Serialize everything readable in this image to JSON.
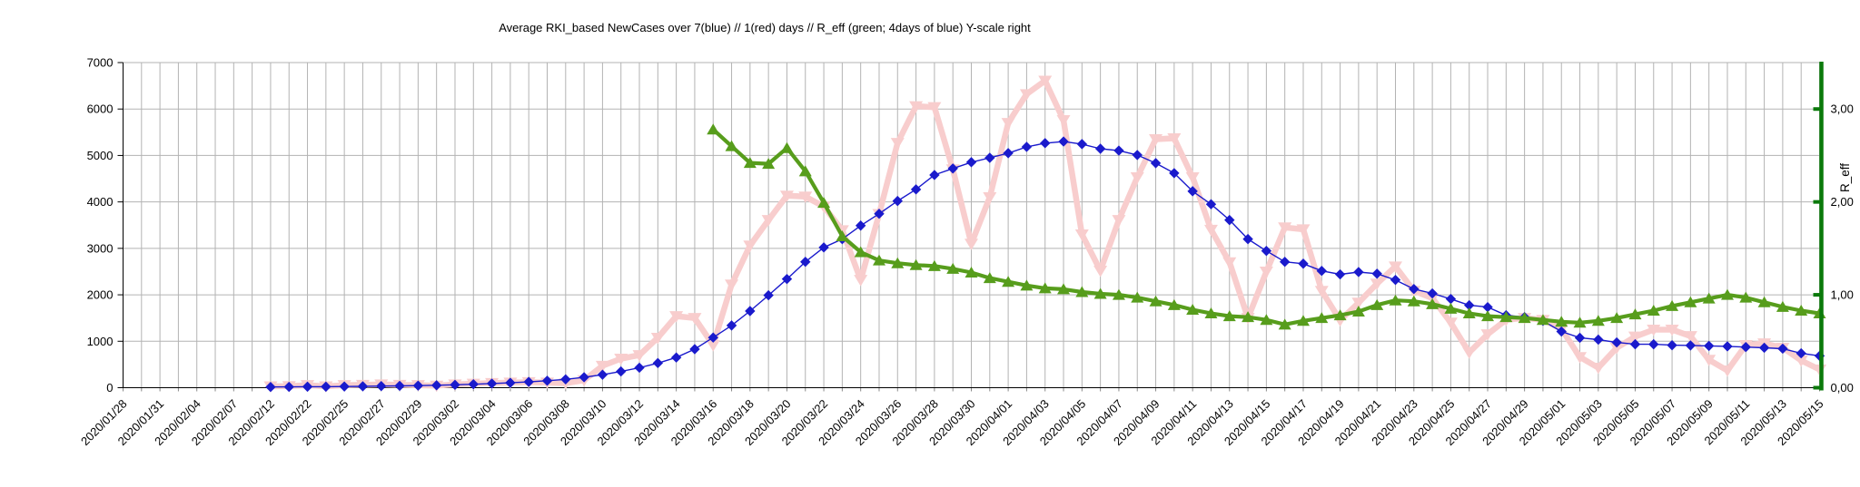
{
  "title": "Average RKI_based NewCases over 7(blue) // 1(red) days //  R_eff (green; 4days of blue) Y-scale right",
  "colors": {
    "background": "#ffffff",
    "grid": "#b3b3b3",
    "axis": "#000000",
    "right_axis_green": "#0b7a0b",
    "series_blue": "#1a1acc",
    "series_pink": "#f8cdcd",
    "series_green": "#579d1c"
  },
  "chart_data": {
    "type": "line",
    "title": "Average RKI_based NewCases over 7(blue) // 1(red) days //  R_eff (green; 4days of blue) Y-scale right",
    "n_points": 93,
    "points_per_label": 2,
    "grid": true,
    "x_labels": [
      "2020/01/28",
      "2020/01/31",
      "2020/02/04",
      "2020/02/07",
      "2020/02/12",
      "2020/02/22",
      "2020/02/25",
      "2020/02/27",
      "2020/02/29",
      "2020/03/02",
      "2020/03/04",
      "2020/03/06",
      "2020/03/08",
      "2020/03/10",
      "2020/03/12",
      "2020/03/14",
      "2020/03/16",
      "2020/03/18",
      "2020/03/20",
      "2020/03/22",
      "2020/03/24",
      "2020/03/26",
      "2020/03/28",
      "2020/03/30",
      "2020/04/01",
      "2020/04/03",
      "2020/04/05",
      "2020/04/07",
      "2020/04/09",
      "2020/04/11",
      "2020/04/13",
      "2020/04/15",
      "2020/04/17",
      "2020/04/19",
      "2020/04/21",
      "2020/04/23",
      "2020/04/25",
      "2020/04/27",
      "2020/04/29",
      "2020/05/01",
      "2020/05/03",
      "2020/05/05",
      "2020/05/07",
      "2020/05/09",
      "2020/05/11",
      "2020/05/13",
      "2020/05/15"
    ],
    "y_left": {
      "min": 0,
      "max": 7000,
      "tick_step": 1000,
      "tick_labels": [
        "0",
        "1000",
        "2000",
        "3000",
        "4000",
        "5000",
        "6000",
        "7000"
      ]
    },
    "y_right": {
      "label": "R_eff",
      "min": 0,
      "max": 3.5,
      "tick_values": [
        0,
        1,
        2,
        3
      ],
      "tick_labels": [
        "0,00",
        "1,00",
        "2,00",
        "3,00"
      ]
    },
    "series": [
      {
        "name": "NewCases 1 day (red)",
        "axis": "left",
        "color": "#f8cdcd",
        "marker": "triangle-down",
        "line_width": 6.5,
        "values": [
          null,
          null,
          null,
          null,
          null,
          null,
          null,
          null,
          30,
          35,
          55,
          30,
          55,
          60,
          70,
          60,
          55,
          45,
          70,
          85,
          100,
          110,
          120,
          110,
          95,
          160,
          470,
          625,
          700,
          1075,
          1540,
          1500,
          915,
          2220,
          3060,
          3610,
          4135,
          4115,
          3900,
          3390,
          2320,
          3740,
          5270,
          6060,
          6040,
          4700,
          3100,
          4100,
          5700,
          6320,
          6610,
          5760,
          3300,
          2520,
          3610,
          4530,
          5350,
          5370,
          4530,
          3400,
          2700,
          1500,
          2500,
          3450,
          3410,
          2085,
          1450,
          1830,
          2240,
          2610,
          2085,
          1930,
          1400,
          760,
          1150,
          1460,
          1500,
          1460,
          1270,
          660,
          430,
          860,
          1100,
          1250,
          1250,
          1110,
          600,
          370,
          917,
          955,
          860,
          585,
          390
        ]
      },
      {
        "name": "NewCases average 7 days (blue)",
        "axis": "left",
        "color": "#1a1acc",
        "marker": "diamond",
        "line_width": 1.4,
        "values": [
          null,
          null,
          null,
          null,
          null,
          null,
          null,
          null,
          15,
          18,
          22,
          22,
          26,
          30,
          35,
          40,
          45,
          52,
          62,
          75,
          90,
          105,
          125,
          150,
          180,
          225,
          280,
          350,
          430,
          530,
          650,
          830,
          1080,
          1340,
          1650,
          1990,
          2340,
          2710,
          3020,
          3200,
          3490,
          3745,
          4020,
          4270,
          4580,
          4720,
          4855,
          4950,
          5050,
          5185,
          5265,
          5300,
          5245,
          5145,
          5105,
          5010,
          4835,
          4620,
          4230,
          3950,
          3610,
          3200,
          2945,
          2710,
          2670,
          2515,
          2440,
          2490,
          2455,
          2320,
          2125,
          2030,
          1910,
          1775,
          1735,
          1560,
          1520,
          1440,
          1210,
          1075,
          1035,
          975,
          935,
          935,
          915,
          910,
          900,
          890,
          875,
          860,
          840,
          740,
          685
        ]
      },
      {
        "name": "R_eff (green; 4days of blue)",
        "axis": "right",
        "color": "#579d1c",
        "marker": "triangle-up",
        "line_width": 4.2,
        "values": [
          null,
          null,
          null,
          null,
          null,
          null,
          null,
          null,
          null,
          null,
          null,
          null,
          null,
          null,
          null,
          null,
          null,
          null,
          null,
          null,
          null,
          null,
          null,
          null,
          null,
          null,
          null,
          null,
          null,
          null,
          null,
          null,
          2.78,
          2.6,
          2.42,
          2.41,
          2.58,
          2.33,
          1.99,
          1.63,
          1.46,
          1.37,
          1.34,
          1.32,
          1.31,
          1.28,
          1.24,
          1.18,
          1.14,
          1.1,
          1.07,
          1.06,
          1.03,
          1.01,
          1.0,
          0.97,
          0.93,
          0.89,
          0.84,
          0.8,
          0.77,
          0.76,
          0.73,
          0.68,
          0.72,
          0.75,
          0.78,
          0.82,
          0.89,
          0.94,
          0.93,
          0.9,
          0.85,
          0.8,
          0.77,
          0.76,
          0.75,
          0.73,
          0.71,
          0.7,
          0.72,
          0.75,
          0.79,
          0.83,
          0.88,
          0.92,
          0.96,
          1.0,
          0.97,
          0.92,
          0.87,
          0.83,
          0.8
        ]
      }
    ]
  }
}
